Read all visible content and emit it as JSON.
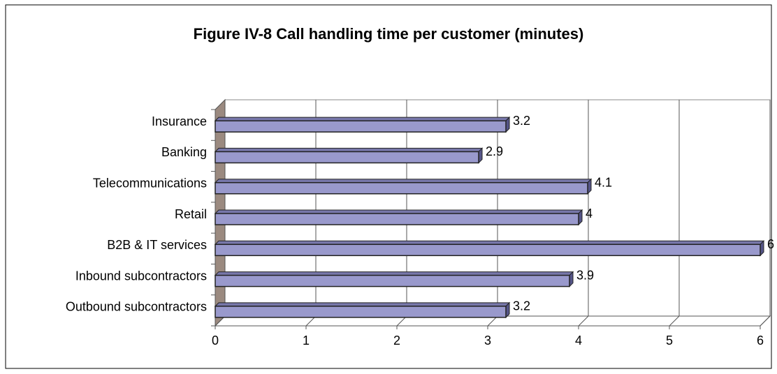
{
  "chart_data": {
    "type": "bar",
    "title": "Figure IV-8 Call handling time per customer (minutes)",
    "categories": [
      "Insurance",
      "Banking",
      "Telecommunications",
      "Retail",
      "B2B & IT services",
      "Inbound subcontractors",
      "Outbound subcontractors"
    ],
    "values": [
      3.2,
      2.9,
      4.1,
      4,
      6,
      3.9,
      3.2
    ],
    "color": "#9999cc",
    "xlim": [
      0,
      6
    ],
    "xticks": [
      0,
      1,
      2,
      3,
      4,
      5,
      6
    ],
    "grid": true
  }
}
